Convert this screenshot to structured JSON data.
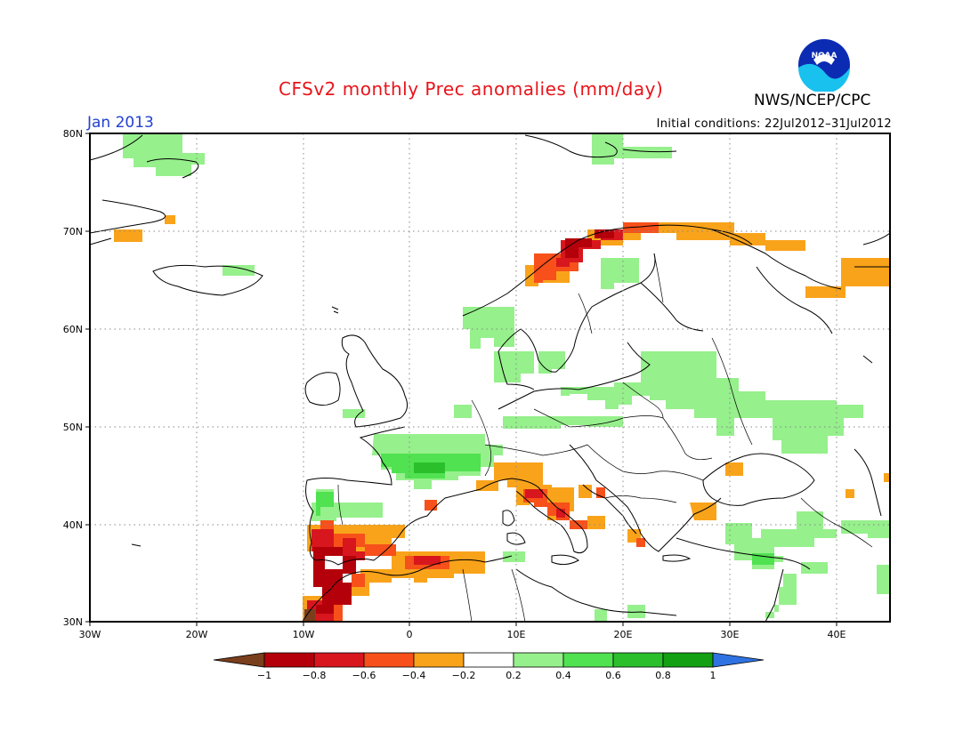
{
  "title": "CFSv2 monthly Prec anomalies (mm/day)",
  "agency": "NWS/NCEP/CPC",
  "logo": {
    "text": "NOAA",
    "icon": "noaa-logo"
  },
  "valid_month": "Jan 2013",
  "initial_conditions": "Initial conditions: 22Jul2012–31Jul2012",
  "map": {
    "lat_ticks": [
      "30N",
      "40N",
      "50N",
      "60N",
      "70N",
      "80N"
    ],
    "lon_ticks": [
      "30W",
      "20W",
      "10W",
      "0",
      "10E",
      "20E",
      "30E",
      "40E"
    ],
    "lon_range": [
      -30,
      45
    ],
    "lat_range": [
      30,
      80
    ],
    "gridlines": "dotted",
    "anomalies": [
      {
        "region": "Portugal and SW Iberia",
        "value": -0.8
      },
      {
        "region": "Morocco coast",
        "value": -1.0
      },
      {
        "region": "Southern Spain",
        "value": -0.6
      },
      {
        "region": "Algeria coast",
        "value": -0.4
      },
      {
        "region": "Italy west coast",
        "value": -0.6
      },
      {
        "region": "Northern Italy",
        "value": -0.4
      },
      {
        "region": "Norway coast",
        "value": -0.8
      },
      {
        "region": "Northern Scandinavia",
        "value": -0.4
      },
      {
        "region": "NW Russia",
        "value": -0.4
      },
      {
        "region": "Turkey west",
        "value": -0.4
      },
      {
        "region": "France",
        "value": 0.4
      },
      {
        "region": "SW France",
        "value": 0.6
      },
      {
        "region": "Poland and Belarus",
        "value": 0.2
      },
      {
        "region": "Western Russia",
        "value": 0.2
      },
      {
        "region": "Greenland",
        "value": 0.2
      },
      {
        "region": "Iceland",
        "value": 0.2
      },
      {
        "region": "NW Iberia",
        "value": 0.4
      },
      {
        "region": "Turkey south",
        "value": 0.2
      },
      {
        "region": "Scandinavia",
        "value": 0.2
      }
    ]
  },
  "colorbar": {
    "labels": [
      "−1",
      "−0.8",
      "−0.6",
      "−0.4",
      "−0.2",
      "0.2",
      "0.4",
      "0.6",
      "0.8",
      "1"
    ],
    "colors": [
      "#7a3f1c",
      "#b4000a",
      "#d8161e",
      "#f7501a",
      "#f9a31b",
      "#ffffff",
      "#96f08c",
      "#50e250",
      "#2bbf2b",
      "#13a013",
      "#2f72e2"
    ]
  }
}
